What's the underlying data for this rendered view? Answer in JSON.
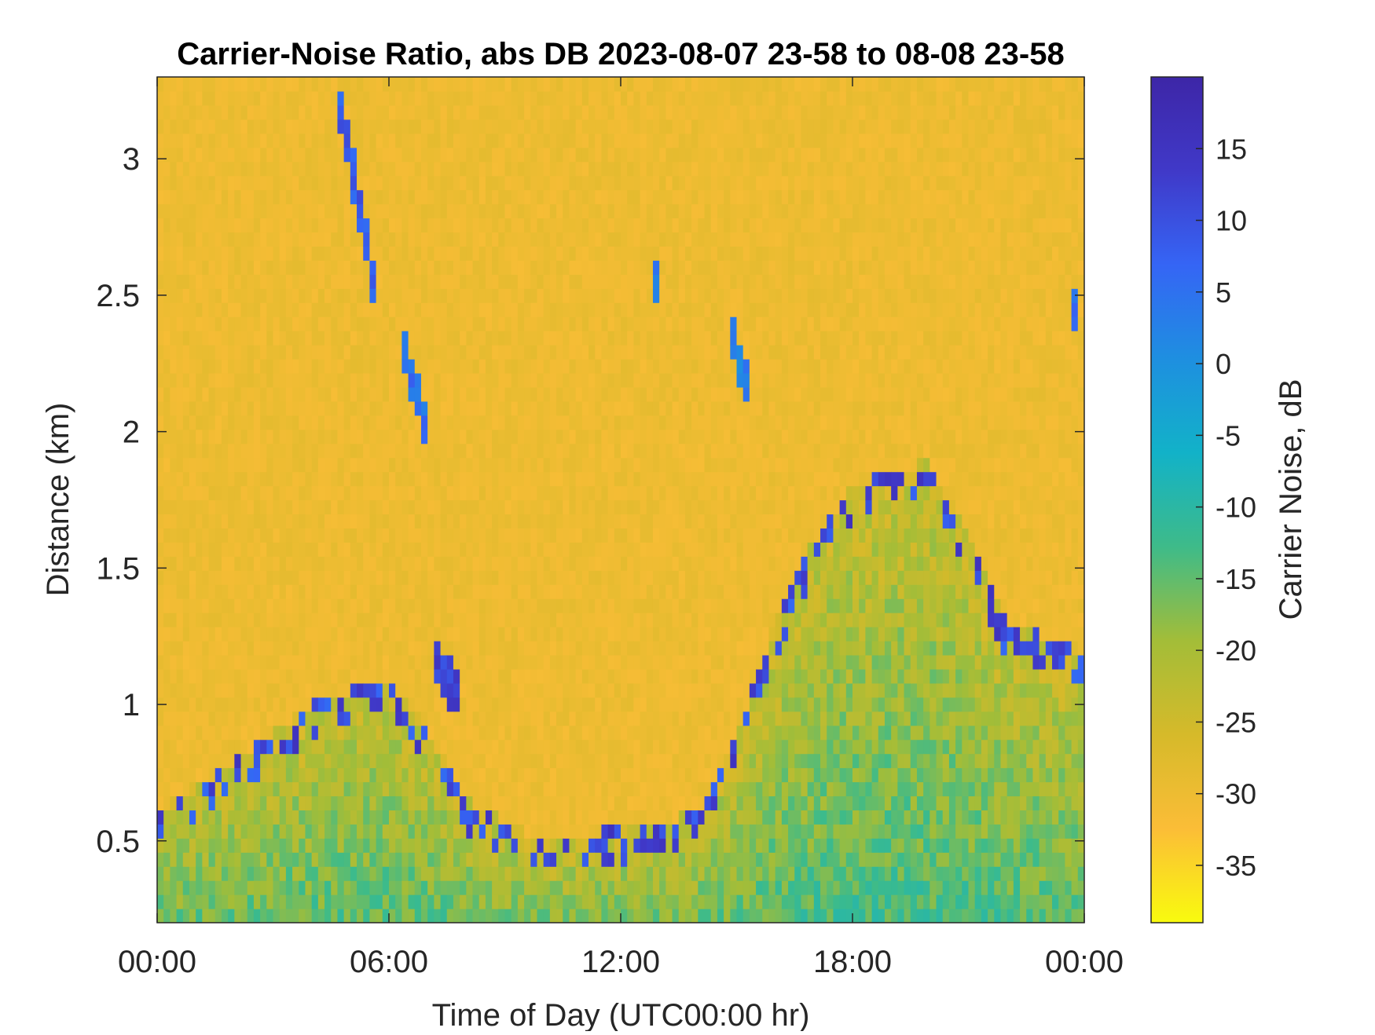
{
  "chart_data": {
    "type": "heatmap",
    "title": "Carrier-Noise Ratio, abs DB 2023-08-07 23-58 to 08-08 23-58",
    "xlabel": "Time of Day (UTC00:00 hr)",
    "ylabel": "Distance (km)",
    "colorbar_label": "Carrier Noise, dB",
    "xlim": [
      0,
      24
    ],
    "ylim": [
      0.2,
      3.3
    ],
    "clim": [
      -39,
      20
    ],
    "x_ticks": [
      {
        "value": 0,
        "label": "00:00"
      },
      {
        "value": 6,
        "label": "06:00"
      },
      {
        "value": 12,
        "label": "12:00"
      },
      {
        "value": 18,
        "label": "18:00"
      },
      {
        "value": 24,
        "label": "00:00"
      }
    ],
    "y_ticks": [
      {
        "value": 0.5,
        "label": "0.5"
      },
      {
        "value": 1,
        "label": "1"
      },
      {
        "value": 1.5,
        "label": "1.5"
      },
      {
        "value": 2,
        "label": "2"
      },
      {
        "value": 2.5,
        "label": "2.5"
      },
      {
        "value": 3,
        "label": "3"
      }
    ],
    "colorbar_ticks": [
      {
        "value": 15,
        "label": "15"
      },
      {
        "value": 10,
        "label": "10"
      },
      {
        "value": 5,
        "label": "5"
      },
      {
        "value": 0,
        "label": "0"
      },
      {
        "value": -5,
        "label": "-5"
      },
      {
        "value": -10,
        "label": "-10"
      },
      {
        "value": -15,
        "label": "-15"
      },
      {
        "value": -20,
        "label": "-20"
      },
      {
        "value": -25,
        "label": "-25"
      },
      {
        "value": -30,
        "label": "-30"
      },
      {
        "value": -35,
        "label": "-35"
      }
    ],
    "colormap": "parula (reversed)",
    "colormap_stops": [
      "#f9fb0e",
      "#fbbd37",
      "#d6ba2a",
      "#a3bd38",
      "#3ebb89",
      "#12b2c8",
      "#1e8fe0",
      "#3565f5",
      "#4039c8",
      "#3d26a7"
    ],
    "background_level_db": -30,
    "boundary_layer_top_km": [
      {
        "t": 0,
        "top": 0.6
      },
      {
        "t": 2,
        "top": 0.8
      },
      {
        "t": 4,
        "top": 1.0
      },
      {
        "t": 6,
        "top": 1.1
      },
      {
        "t": 7,
        "top": 0.9
      },
      {
        "t": 8,
        "top": 0.65
      },
      {
        "t": 10,
        "top": 0.5
      },
      {
        "t": 12,
        "top": 0.55
      },
      {
        "t": 14,
        "top": 0.6
      },
      {
        "t": 15,
        "top": 0.9
      },
      {
        "t": 16,
        "top": 1.3
      },
      {
        "t": 17,
        "top": 1.6
      },
      {
        "t": 18,
        "top": 1.8
      },
      {
        "t": 20,
        "top": 1.9
      },
      {
        "t": 21,
        "top": 1.6
      },
      {
        "t": 22,
        "top": 1.3
      },
      {
        "t": 24,
        "top": 1.2
      }
    ],
    "features": [
      {
        "t_start": 4.6,
        "t_end": 5.6,
        "d_start": 3.3,
        "d_end": 2.55,
        "db": 8,
        "note": "descending plume"
      },
      {
        "t_start": 6.4,
        "t_end": 7.0,
        "d_start": 2.3,
        "d_end": 2.0,
        "db": 5
      },
      {
        "t_start": 7.1,
        "t_end": 7.9,
        "d_start": 1.2,
        "d_end": 1.0,
        "db": 12
      },
      {
        "t_start": 14.9,
        "t_end": 15.4,
        "d_start": 2.35,
        "d_end": 2.1,
        "db": 3
      },
      {
        "t_start": 12.8,
        "t_end": 13.0,
        "d_start": 2.65,
        "d_end": 2.45,
        "db": 4
      },
      {
        "t_start": 23.7,
        "t_end": 23.8,
        "d_start": 2.5,
        "d_end": 2.4,
        "db": 6
      }
    ]
  }
}
